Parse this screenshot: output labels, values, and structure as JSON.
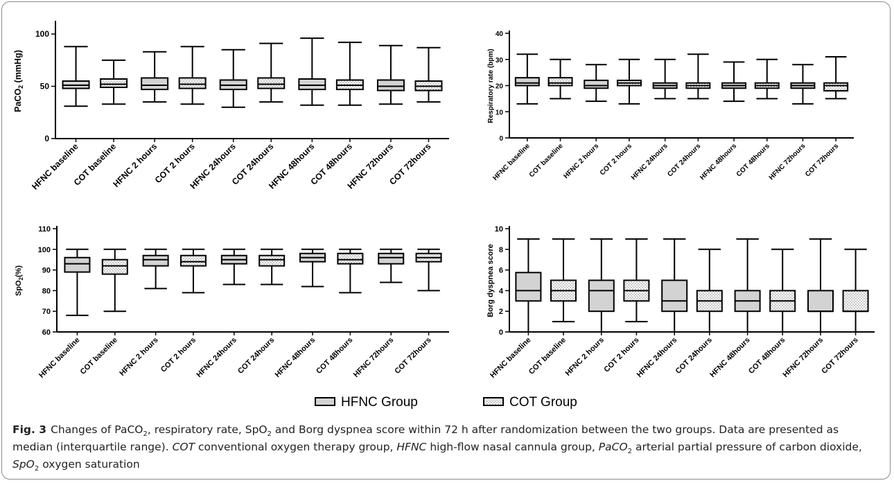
{
  "colors": {
    "hfnc_fill": "#d3d3d3",
    "cot_fill": "#ffffff",
    "stroke": "#000000"
  },
  "legend": {
    "placement": "bottom-center",
    "items": [
      {
        "label": "HFNC Group",
        "pattern": "solid-gray"
      },
      {
        "label": "COT Group",
        "pattern": "dotted"
      }
    ]
  },
  "chart_data": [
    {
      "type": "box",
      "ylabel_main": "PaCO",
      "ylabel_sub": "2",
      "ylabel_suffix": " (mmHg)",
      "ylim": [
        0,
        110
      ],
      "yticks": [
        0,
        50,
        100
      ],
      "categories": [
        "HFNC baseline",
        "COT baseline",
        "HFNC 2 hours",
        "COT 2 hours",
        "HFNC 24hours",
        "COT 24hours",
        "HFNC 48hours",
        "COT 48hours",
        "HFNC 72hours",
        "COT 72hours"
      ],
      "series": [
        {
          "group": "HFNC",
          "boxes": [
            {
              "min": 31,
              "q1": 48,
              "median": 51,
              "q3": 55,
              "max": 88
            },
            {
              "min": 35,
              "q1": 47,
              "median": 51,
              "q3": 58,
              "max": 83
            },
            {
              "min": 30,
              "q1": 47,
              "median": 51,
              "q3": 56,
              "max": 85
            },
            {
              "min": 32,
              "q1": 47,
              "median": 51,
              "q3": 57,
              "max": 96
            },
            {
              "min": 33,
              "q1": 46,
              "median": 50,
              "q3": 56,
              "max": 89
            }
          ]
        },
        {
          "group": "COT",
          "boxes": [
            {
              "min": 33,
              "q1": 49,
              "median": 52,
              "q3": 57,
              "max": 75
            },
            {
              "min": 33,
              "q1": 48,
              "median": 52,
              "q3": 58,
              "max": 88
            },
            {
              "min": 35,
              "q1": 48,
              "median": 52,
              "q3": 58,
              "max": 91
            },
            {
              "min": 32,
              "q1": 47,
              "median": 51,
              "q3": 56,
              "max": 92
            },
            {
              "min": 35,
              "q1": 46,
              "median": 50,
              "q3": 55,
              "max": 87
            }
          ]
        }
      ]
    },
    {
      "type": "box",
      "ylabel_main": "Respiratory rate (bpm)",
      "ylabel_sub": "",
      "ylabel_suffix": "",
      "ylim": [
        0,
        40
      ],
      "yticks": [
        0,
        10,
        20,
        30,
        40
      ],
      "categories": [
        "HFNC baseline",
        "COT baseline",
        "HFNC 2 hours",
        "COT 2 hours",
        "HFNC 24hours",
        "COT 24hours",
        "HFNC 48hours",
        "COT 48hours",
        "HFNC 72hours",
        "COT 72hours"
      ],
      "series": [
        {
          "group": "HFNC",
          "boxes": [
            {
              "min": 13,
              "q1": 20,
              "median": 21,
              "q3": 23,
              "max": 32
            },
            {
              "min": 14,
              "q1": 19,
              "median": 20,
              "q3": 22,
              "max": 28
            },
            {
              "min": 15,
              "q1": 19,
              "median": 20,
              "q3": 21,
              "max": 30
            },
            {
              "min": 14,
              "q1": 19,
              "median": 20,
              "q3": 21,
              "max": 29
            },
            {
              "min": 13,
              "q1": 19,
              "median": 20,
              "q3": 21,
              "max": 28
            }
          ]
        },
        {
          "group": "COT",
          "boxes": [
            {
              "min": 15,
              "q1": 20,
              "median": 21,
              "q3": 23,
              "max": 30
            },
            {
              "min": 13,
              "q1": 20,
              "median": 21,
              "q3": 22,
              "max": 30
            },
            {
              "min": 15,
              "q1": 19,
              "median": 20,
              "q3": 21,
              "max": 32
            },
            {
              "min": 15,
              "q1": 19,
              "median": 20,
              "q3": 21,
              "max": 30
            },
            {
              "min": 15,
              "q1": 18,
              "median": 20,
              "q3": 21,
              "max": 31
            }
          ]
        }
      ]
    },
    {
      "type": "box",
      "ylabel_main": "SpO",
      "ylabel_sub": "2",
      "ylabel_suffix": "(%)",
      "ylim": [
        60,
        110
      ],
      "yticks": [
        60,
        70,
        80,
        90,
        100,
        110
      ],
      "categories": [
        "HFNC baseline",
        "COT baseline",
        "HFNC 2 hours",
        "COT 2 hours",
        "HFNC 24hours",
        "COT 24hours",
        "HFNC 48hours",
        "COT 48hours",
        "HFNC 72hours",
        "COT 72hours"
      ],
      "series": [
        {
          "group": "HFNC",
          "boxes": [
            {
              "min": 68,
              "q1": 89,
              "median": 93,
              "q3": 96,
              "max": 100
            },
            {
              "min": 81,
              "q1": 92,
              "median": 95,
              "q3": 97,
              "max": 100
            },
            {
              "min": 83,
              "q1": 93,
              "median": 95,
              "q3": 97,
              "max": 100
            },
            {
              "min": 82,
              "q1": 94,
              "median": 96,
              "q3": 98,
              "max": 100
            },
            {
              "min": 84,
              "q1": 93,
              "median": 96,
              "q3": 98,
              "max": 100
            }
          ]
        },
        {
          "group": "COT",
          "boxes": [
            {
              "min": 70,
              "q1": 88,
              "median": 92,
              "q3": 95,
              "max": 100
            },
            {
              "min": 79,
              "q1": 92,
              "median": 94,
              "q3": 97,
              "max": 100
            },
            {
              "min": 83,
              "q1": 92,
              "median": 95,
              "q3": 97,
              "max": 100
            },
            {
              "min": 79,
              "q1": 93,
              "median": 95,
              "q3": 98,
              "max": 100
            },
            {
              "min": 80,
              "q1": 94,
              "median": 96,
              "q3": 98,
              "max": 100
            }
          ]
        }
      ]
    },
    {
      "type": "box",
      "ylabel_main": "Borg dyspnea score",
      "ylabel_sub": "",
      "ylabel_suffix": "",
      "ylim": [
        0,
        10
      ],
      "yticks": [
        0,
        2,
        4,
        6,
        8,
        10
      ],
      "categories": [
        "HFNC baseline",
        "COT baseline",
        "HFNC 2 hours",
        "COT 2 hours",
        "HFNC 24hours",
        "COT 24hours",
        "HFNC 48hours",
        "COT 48hours",
        "HFNC 72hours",
        "COT 72hours"
      ],
      "series": [
        {
          "group": "HFNC",
          "boxes": [
            {
              "min": 0,
              "q1": 3,
              "median": 4,
              "q3": 5.75,
              "max": 9
            },
            {
              "min": 0,
              "q1": 2,
              "median": 4,
              "q3": 5,
              "max": 9
            },
            {
              "min": 0,
              "q1": 2,
              "median": 3,
              "q3": 5,
              "max": 9
            },
            {
              "min": 0,
              "q1": 2,
              "median": 3,
              "q3": 4,
              "max": 9
            },
            {
              "min": 0,
              "q1": 2,
              "median": 2,
              "q3": 4,
              "max": 9
            }
          ]
        },
        {
          "group": "COT",
          "boxes": [
            {
              "min": 1,
              "q1": 3,
              "median": 4,
              "q3": 5,
              "max": 9
            },
            {
              "min": 1,
              "q1": 3,
              "median": 4,
              "q3": 5,
              "max": 9
            },
            {
              "min": 0,
              "q1": 2,
              "median": 3,
              "q3": 4,
              "max": 8
            },
            {
              "min": 0,
              "q1": 2,
              "median": 3,
              "q3": 4,
              "max": 8
            },
            {
              "min": 0,
              "q1": 2,
              "median": 2,
              "q3": 4,
              "max": 8
            }
          ]
        }
      ]
    }
  ],
  "caption": {
    "label": "Fig. 3",
    "t1": "Changes of PaCO",
    "t1_sub": "2",
    "t2": ", respiratory rate, SpO",
    "t2_sub": "2",
    "t3": " and Borg dyspnea score within 72 h after randomization between the two groups. Data are presented as median (interquartile range). ",
    "abbr_cot": "COT",
    "t4": " conventional oxygen therapy group, ",
    "abbr_hfnc": "HFNC",
    "t5": " high-flow nasal cannula group, ",
    "abbr_paco2": "PaCO",
    "abbr_paco2_sub": "2",
    "t6": " arterial partial pressure of carbon dioxide, ",
    "abbr_spo2": "SpO",
    "abbr_spo2_sub": "2",
    "t7": " oxygen saturation"
  }
}
